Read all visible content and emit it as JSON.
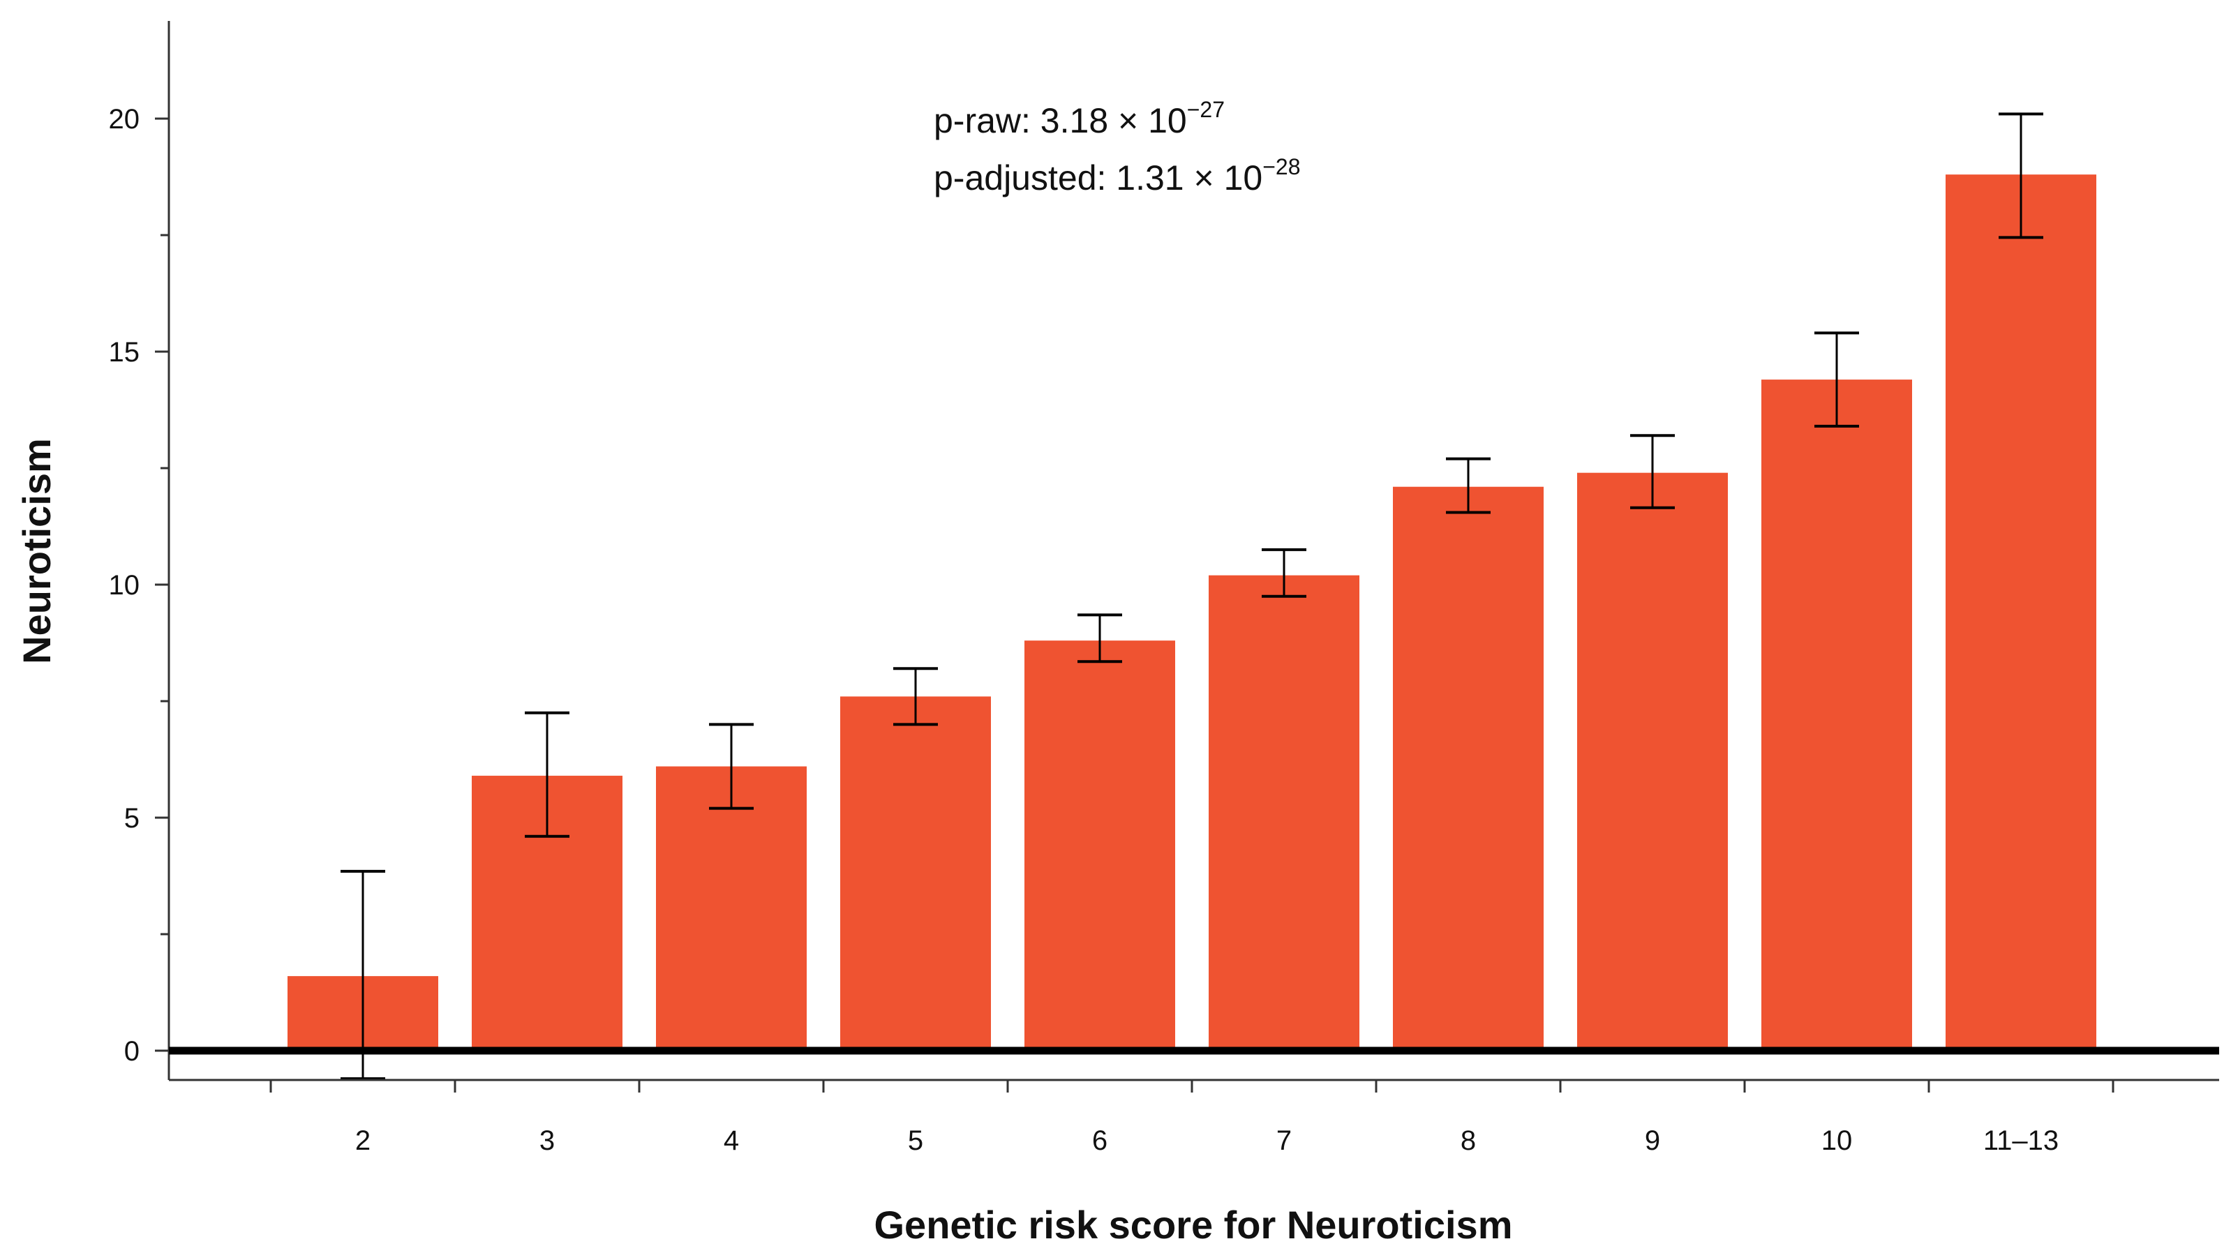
{
  "chart_data": {
    "type": "bar",
    "title": "",
    "xlabel": "Genetic risk score for Neuroticism",
    "ylabel": "Neuroticism",
    "categories": [
      "2",
      "3",
      "4",
      "5",
      "6",
      "7",
      "8",
      "9",
      "10",
      "11–13"
    ],
    "values": [
      1.6,
      5.9,
      6.1,
      7.6,
      8.8,
      10.2,
      12.1,
      12.4,
      14.4,
      18.8
    ],
    "error_low": [
      -0.6,
      4.6,
      5.2,
      7.0,
      8.35,
      9.75,
      11.55,
      11.65,
      13.4,
      17.45
    ],
    "error_high": [
      3.85,
      7.25,
      7.0,
      8.2,
      9.35,
      10.75,
      12.7,
      13.2,
      15.4,
      20.1
    ],
    "ylim": [
      -0.6,
      22
    ],
    "yticks": [
      "0",
      "5",
      "10",
      "15",
      "20"
    ],
    "ytick_values": [
      0,
      5,
      10,
      15,
      20
    ],
    "grid": false,
    "bar_color": "#ef5331",
    "annotations": {
      "p_raw": {
        "label": "p-raw: 3.18 × 10",
        "exponent": "−27"
      },
      "p_adjusted": {
        "label": "p-adjusted: 1.31 × 10",
        "exponent": "−28"
      }
    }
  }
}
